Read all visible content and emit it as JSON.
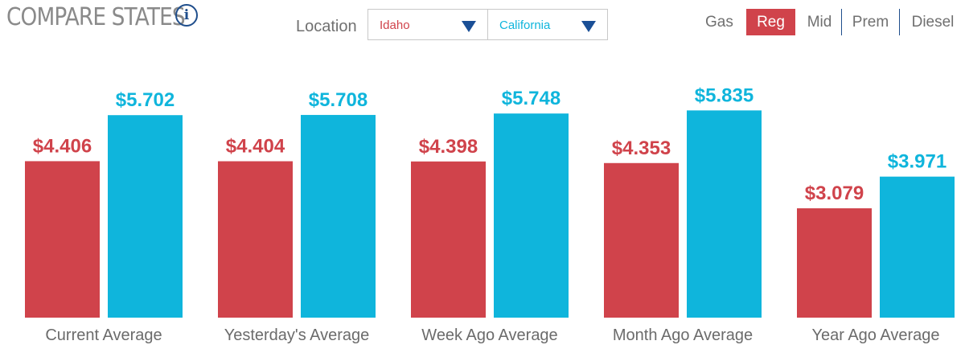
{
  "header": {
    "title": "COMPARE STATES",
    "info_icon": "info-icon",
    "location_label": "Location",
    "location_a": "Idaho",
    "location_b": "California",
    "gas_label": "Gas",
    "gas_types": [
      "Reg",
      "Mid",
      "Prem",
      "Diesel"
    ],
    "gas_selected": "Reg"
  },
  "colors": {
    "idaho": "#d0434b",
    "california": "#0fb5dc",
    "accent": "#1f4e8c"
  },
  "chart_data": {
    "type": "bar",
    "categories": [
      "Current Average",
      "Yesterday's Average",
      "Week Ago Average",
      "Month Ago Average",
      "Year Ago Average"
    ],
    "series": [
      {
        "name": "Idaho",
        "values": [
          4.406,
          4.404,
          4.398,
          4.353,
          3.079
        ],
        "labels": [
          "$4.406",
          "$4.404",
          "$4.398",
          "$4.353",
          "$3.079"
        ]
      },
      {
        "name": "California",
        "values": [
          5.702,
          5.708,
          5.748,
          5.835,
          3.971
        ],
        "labels": [
          "$5.702",
          "$5.708",
          "$5.748",
          "$5.835",
          "$3.971"
        ]
      }
    ],
    "ylim": [
      0,
      6.2
    ],
    "grid": false,
    "legend": "none"
  }
}
